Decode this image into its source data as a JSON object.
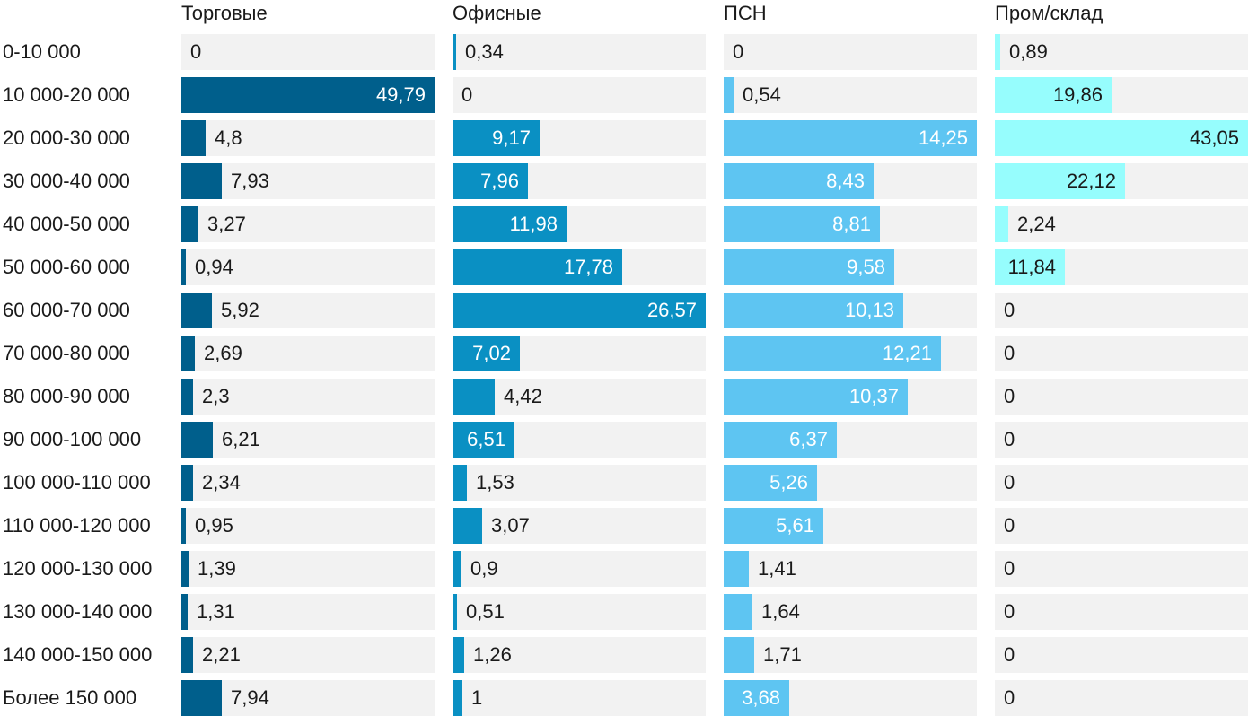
{
  "chart_data": {
    "type": "bar",
    "orientation": "horizontal",
    "layout": "small-multiples",
    "title": "",
    "xlabel": "",
    "ylabel": "",
    "categories": [
      "0-10 000",
      "10 000-20 000",
      "20 000-30 000",
      "30 000-40 000",
      "40 000-50 000",
      "50 000-60 000",
      "60 000-70 000",
      "70 000-80 000",
      "80 000-90 000",
      "90 000-100 000",
      "100 000-110 000",
      "110 000-120 000",
      "120 000-130 000",
      "130 000-140 000",
      "140 000-150 000",
      "Более 150 000"
    ],
    "series": [
      {
        "name": "Торговые",
        "color": "#005f8c",
        "values": [
          0,
          49.79,
          4.8,
          7.93,
          3.27,
          0.94,
          5.92,
          2.69,
          2.3,
          6.21,
          2.34,
          0.95,
          1.39,
          1.31,
          2.21,
          7.94
        ],
        "labels": [
          "0",
          "49,79",
          "4,8",
          "7,93",
          "3,27",
          "0,94",
          "5,92",
          "2,69",
          "2,3",
          "6,21",
          "2,34",
          "0,95",
          "1,39",
          "1,31",
          "2,21",
          "7,94"
        ]
      },
      {
        "name": "Офисные",
        "color": "#0a90c3",
        "values": [
          0.34,
          0,
          9.17,
          7.96,
          11.98,
          17.78,
          26.57,
          7.02,
          4.42,
          6.51,
          1.53,
          3.07,
          0.9,
          0.51,
          1.26,
          1
        ],
        "labels": [
          "0,34",
          "0",
          "9,17",
          "7,96",
          "11,98",
          "17,78",
          "26,57",
          "7,02",
          "4,42",
          "6,51",
          "1,53",
          "3,07",
          "0,9",
          "0,51",
          "1,26",
          "1"
        ]
      },
      {
        "name": "ПСН",
        "color": "#5ec5f2",
        "values": [
          0,
          0.54,
          14.25,
          8.43,
          8.81,
          9.58,
          10.13,
          12.21,
          10.37,
          6.37,
          5.26,
          5.61,
          1.41,
          1.64,
          1.71,
          3.68
        ],
        "labels": [
          "0",
          "0,54",
          "14,25",
          "8,43",
          "8,81",
          "9,58",
          "10,13",
          "12,21",
          "10,37",
          "6,37",
          "5,26",
          "5,61",
          "1,41",
          "1,64",
          "1,71",
          "3,68"
        ]
      },
      {
        "name": "Пром/склад",
        "color": "#96fdfd",
        "values": [
          0.89,
          19.86,
          43.05,
          22.12,
          2.24,
          11.84,
          0,
          0,
          0,
          0,
          0,
          0,
          0,
          0,
          0,
          0
        ],
        "labels": [
          "0,89",
          "19,86",
          "43,05",
          "22,12",
          "2,24",
          "11,84",
          "0",
          "0",
          "0",
          "0",
          "0",
          "0",
          "0",
          "0",
          "0",
          "0"
        ]
      }
    ]
  }
}
